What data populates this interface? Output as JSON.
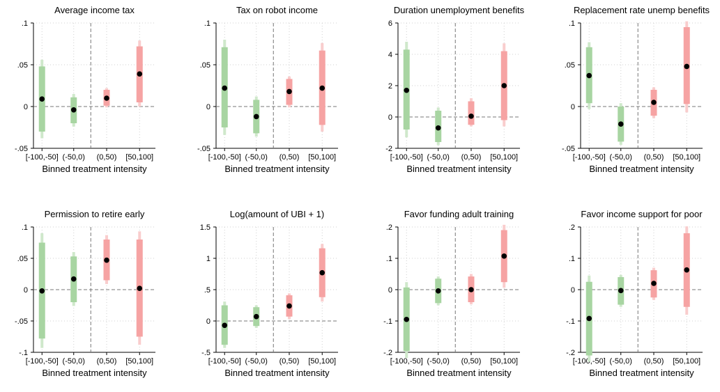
{
  "colors": {
    "negative": "#a8d5a2",
    "negative_whisker": "#cfe8cb",
    "positive": "#f6a3a3",
    "positive_whisker": "#f9cdcd",
    "point": "#000000",
    "zero_line": "#777777",
    "grid": "#cfcfcf"
  },
  "xlabel": "Binned treatment intensity",
  "categories": [
    "[-100,-50]",
    "(-50,0)",
    "(0,50)",
    "[50,100]"
  ],
  "chart_data": [
    {
      "type": "scatter",
      "title": "Average income tax",
      "xlabel": "Binned treatment intensity",
      "ylim": [
        -0.05,
        0.1
      ],
      "yticks": [
        -0.05,
        0,
        0.05,
        0.1
      ],
      "ytick_labels": [
        "-.05",
        "0",
        ".05",
        ".1"
      ],
      "categories": [
        "[-100,-50]",
        "(-50,0)",
        "(0,50)",
        "[50,100]"
      ],
      "point": [
        0.009,
        -0.004,
        0.01,
        0.039
      ],
      "ci_inner": [
        [
          -0.03,
          0.048
        ],
        [
          -0.02,
          0.011
        ],
        [
          0.001,
          0.02
        ],
        [
          0.005,
          0.072
        ]
      ],
      "ci_outer": [
        [
          -0.038,
          0.056
        ],
        [
          -0.024,
          0.015
        ],
        [
          -0.001,
          0.022
        ],
        [
          0.0,
          0.079
        ]
      ]
    },
    {
      "type": "scatter",
      "title": "Tax on robot income",
      "xlabel": "Binned treatment intensity",
      "ylim": [
        -0.05,
        0.1
      ],
      "yticks": [
        -0.05,
        0,
        0.05,
        0.1
      ],
      "ytick_labels": [
        "-.05",
        "0",
        ".05",
        ".1"
      ],
      "categories": [
        "[-100,-50]",
        "(-50,0)",
        "(0,50)",
        "[50,100]"
      ],
      "point": [
        0.022,
        -0.012,
        0.018,
        0.022
      ],
      "ci_inner": [
        [
          -0.025,
          0.071
        ],
        [
          -0.032,
          0.008
        ],
        [
          0.002,
          0.033
        ],
        [
          -0.022,
          0.067
        ]
      ],
      "ci_outer": [
        [
          -0.034,
          0.08
        ],
        [
          -0.036,
          0.012
        ],
        [
          -0.001,
          0.036
        ],
        [
          -0.03,
          0.076
        ]
      ]
    },
    {
      "type": "scatter",
      "title": "Duration unemployment benefits",
      "xlabel": "Binned treatment intensity",
      "ylim": [
        -2,
        6
      ],
      "yticks": [
        -2,
        0,
        2,
        4,
        6
      ],
      "ytick_labels": [
        "-2",
        "0",
        "2",
        "4",
        "6"
      ],
      "categories": [
        "[-100,-50]",
        "(-50,0)",
        "(0,50)",
        "[50,100]"
      ],
      "point": [
        1.7,
        -0.7,
        0.05,
        2.0
      ],
      "ci_inner": [
        [
          -0.8,
          4.3
        ],
        [
          -1.6,
          0.4
        ],
        [
          -0.5,
          1.0
        ],
        [
          -0.2,
          4.2
        ]
      ],
      "ci_outer": [
        [
          -1.3,
          4.8
        ],
        [
          -1.8,
          0.6
        ],
        [
          -0.6,
          1.2
        ],
        [
          -0.6,
          4.7
        ]
      ]
    },
    {
      "type": "scatter",
      "title": "Replacement rate unemp benefits",
      "xlabel": "Binned treatment intensity",
      "ylim": [
        -0.05,
        0.1
      ],
      "yticks": [
        -0.05,
        0,
        0.05,
        0.1
      ],
      "ytick_labels": [
        "-.05",
        "0",
        ".05",
        ".1"
      ],
      "categories": [
        "[-100,-50]",
        "(-50,0)",
        "(0,50)",
        "[50,100]"
      ],
      "point": [
        0.037,
        -0.021,
        0.005,
        0.048
      ],
      "ci_inner": [
        [
          0.004,
          0.071
        ],
        [
          -0.042,
          0.0
        ],
        [
          -0.011,
          0.02
        ],
        [
          0.003,
          0.095
        ]
      ],
      "ci_outer": [
        [
          -0.003,
          0.077
        ],
        [
          -0.046,
          0.004
        ],
        [
          -0.014,
          0.023
        ],
        [
          -0.007,
          0.102
        ]
      ]
    },
    {
      "type": "scatter",
      "title": "Permission to retire early",
      "xlabel": "Binned treatment intensity",
      "ylim": [
        -0.1,
        0.1
      ],
      "yticks": [
        -0.1,
        -0.05,
        0,
        0.05,
        0.1
      ],
      "ytick_labels": [
        "-.1",
        "-.05",
        "0",
        ".05",
        ".1"
      ],
      "categories": [
        "[-100,-50]",
        "(-50,0)",
        "(0,50)",
        "[50,100]"
      ],
      "point": [
        -0.002,
        0.017,
        0.047,
        0.002
      ],
      "ci_inner": [
        [
          -0.078,
          0.075
        ],
        [
          -0.02,
          0.053
        ],
        [
          0.015,
          0.08
        ],
        [
          -0.075,
          0.08
        ]
      ],
      "ci_outer": [
        [
          -0.093,
          0.09
        ],
        [
          -0.026,
          0.06
        ],
        [
          0.009,
          0.087
        ],
        [
          -0.088,
          0.093
        ]
      ]
    },
    {
      "type": "scatter",
      "title": "Log(amount of UBI + 1)",
      "xlabel": "Binned treatment intensity",
      "ylim": [
        -0.5,
        1.5
      ],
      "yticks": [
        -0.5,
        0,
        0.5,
        1,
        1.5
      ],
      "ytick_labels": [
        "-.5",
        "0",
        ".5",
        "1",
        "1.5"
      ],
      "categories": [
        "[-100,-50]",
        "(-50,0)",
        "(0,50)",
        "[50,100]"
      ],
      "point": [
        -0.07,
        0.07,
        0.24,
        0.77
      ],
      "ci_inner": [
        [
          -0.38,
          0.25
        ],
        [
          -0.08,
          0.22
        ],
        [
          0.07,
          0.41
        ],
        [
          0.38,
          1.16
        ]
      ],
      "ci_outer": [
        [
          -0.43,
          0.31
        ],
        [
          -0.11,
          0.25
        ],
        [
          0.03,
          0.44
        ],
        [
          0.31,
          1.23
        ]
      ]
    },
    {
      "type": "scatter",
      "title": "Favor funding adult training",
      "xlabel": "Binned treatment intensity",
      "ylim": [
        -0.2,
        0.2
      ],
      "yticks": [
        -0.2,
        -0.1,
        0,
        0.1,
        0.2
      ],
      "ytick_labels": [
        "-.2",
        "-.1",
        "0",
        ".1",
        ".2"
      ],
      "categories": [
        "[-100,-50]",
        "(-50,0)",
        "(0,50)",
        "[50,100]"
      ],
      "point": [
        -0.095,
        -0.004,
        0.0,
        0.107
      ],
      "ci_inner": [
        [
          -0.196,
          0.007
        ],
        [
          -0.043,
          0.035
        ],
        [
          -0.04,
          0.042
        ],
        [
          0.024,
          0.19
        ]
      ],
      "ci_outer": [
        [
          -0.218,
          0.024
        ],
        [
          -0.05,
          0.042
        ],
        [
          -0.047,
          0.05
        ],
        [
          0.006,
          0.207
        ]
      ]
    },
    {
      "type": "scatter",
      "title": "Favor income support for poor",
      "xlabel": "Binned treatment intensity",
      "ylim": [
        -0.2,
        0.2
      ],
      "yticks": [
        -0.2,
        -0.1,
        0,
        0.1,
        0.2
      ],
      "ytick_labels": [
        "-.2",
        "-.1",
        "0",
        ".1",
        ".2"
      ],
      "categories": [
        "[-100,-50]",
        "(-50,0)",
        "(0,50)",
        "[50,100]"
      ],
      "point": [
        -0.092,
        -0.003,
        0.02,
        0.063
      ],
      "ci_inner": [
        [
          -0.21,
          0.025
        ],
        [
          -0.048,
          0.04
        ],
        [
          -0.025,
          0.062
        ],
        [
          -0.055,
          0.18
        ]
      ],
      "ci_outer": [
        [
          -0.23,
          0.045
        ],
        [
          -0.055,
          0.047
        ],
        [
          -0.033,
          0.07
        ],
        [
          -0.08,
          0.202
        ]
      ]
    }
  ]
}
